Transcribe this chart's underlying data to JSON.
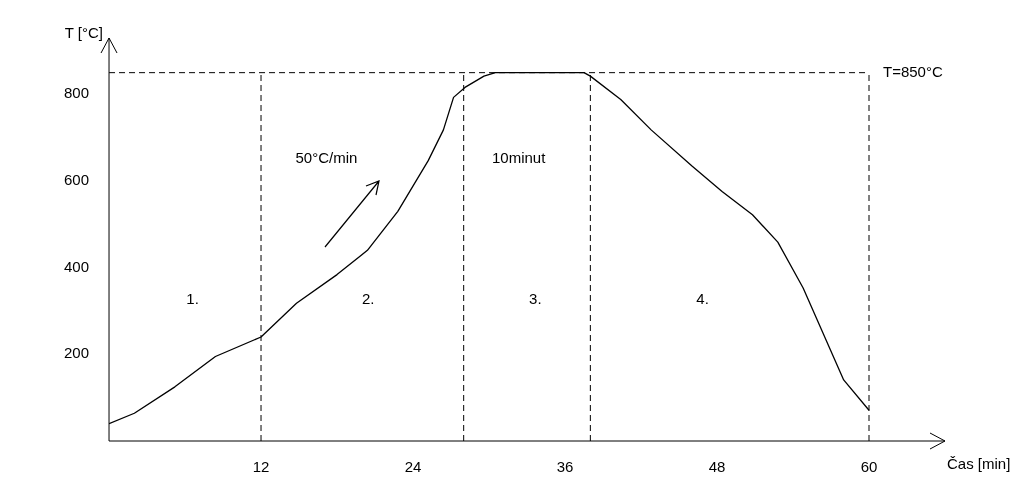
{
  "chart_data": {
    "type": "line",
    "xlabel": "Čas [min]",
    "ylabel": "T [°C]",
    "series": [
      {
        "color": "#000000",
        "x": [
          0,
          2,
          5.2,
          8.4,
          12,
          14.8,
          18,
          20.4,
          22.8,
          25.2,
          26.4,
          27.2,
          28.1,
          29.6,
          30.5,
          37.5,
          38,
          40.4,
          42.8,
          46,
          48.4,
          50.8,
          52.8,
          54.8,
          56.4,
          58,
          60
        ],
        "values": [
          40,
          64,
          125,
          195,
          240,
          318,
          384,
          440,
          530,
          647,
          718,
          793,
          816,
          842,
          850,
          850,
          842,
          788,
          718,
          635,
          576,
          522,
          459,
          353,
          247,
          141,
          71
        ]
      }
    ],
    "xlim": [
      0,
      66
    ],
    "xticks": [
      12,
      24,
      36,
      48,
      60
    ],
    "ylim": [
      0,
      930
    ],
    "yticks": [
      200,
      400,
      600,
      800
    ],
    "ref_lines": [
      {
        "axis": "y",
        "value": 850,
        "label": "T=850°C",
        "line_style": "dashed"
      },
      {
        "axis": "x",
        "value": 12,
        "line_style": "dashed"
      },
      {
        "axis": "x",
        "value": 28,
        "line_style": "dashed"
      },
      {
        "axis": "x",
        "value": 38,
        "line_style": "dashed"
      },
      {
        "axis": "x",
        "value": 60,
        "line_style": "dashed"
      }
    ],
    "annotations": [
      "1.",
      "2.",
      "3.",
      "4.",
      "50°C/min",
      "10minut"
    ],
    "grid": false,
    "legend": false,
    "marker": "none",
    "line_style": "solid"
  }
}
